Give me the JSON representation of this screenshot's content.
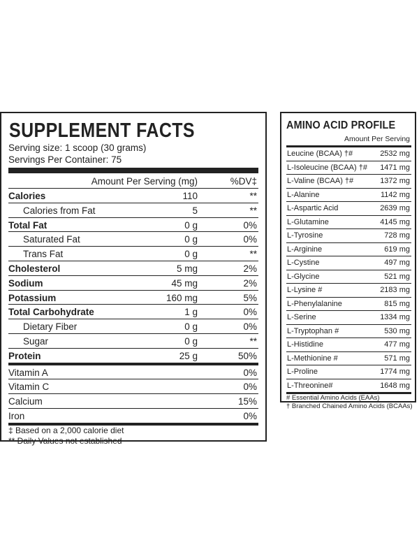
{
  "supplement_facts": {
    "title": "SUPPLEMENT FACTS",
    "serving_size": "Serving size: 1 scoop (30 grams)",
    "servings_per_container": "Servings Per Container: 75",
    "header": {
      "amount": "Amount Per Serving (mg)",
      "dv": "%DV‡"
    },
    "rows": [
      {
        "label": "Calories",
        "value": "110",
        "dv": "**"
      },
      {
        "label": "Calories from Fat",
        "value": "5",
        "dv": "**"
      },
      {
        "label": "Total Fat",
        "value": "0 g",
        "dv": "0%"
      },
      {
        "label": "Saturated Fat",
        "value": "0 g",
        "dv": "0%"
      },
      {
        "label": "Trans Fat",
        "value": "0 g",
        "dv": "**"
      },
      {
        "label": "Cholesterol",
        "value": "5 mg",
        "dv": "2%"
      },
      {
        "label": "Sodium",
        "value": "45 mg",
        "dv": "2%"
      },
      {
        "label": "Potassium",
        "value": "160 mg",
        "dv": "5%"
      },
      {
        "label": "Total Carbohydrate",
        "value": "1 g",
        "dv": "0%"
      },
      {
        "label": "Dietary Fiber",
        "value": "0 g",
        "dv": "0%"
      },
      {
        "label": "Sugar",
        "value": "0 g",
        "dv": "**"
      },
      {
        "label": "Protein",
        "value": "25 g",
        "dv": "50%"
      },
      {
        "label": "Vitamin A",
        "value": "",
        "dv": "0%"
      },
      {
        "label": "Vitamin C",
        "value": "",
        "dv": "0%"
      },
      {
        "label": "Calcium",
        "value": "",
        "dv": "15%"
      },
      {
        "label": "Iron",
        "value": "",
        "dv": "0%"
      }
    ],
    "footnotes": [
      "‡ Based on a 2,000 calorie diet",
      "** Daily Values not established"
    ]
  },
  "amino_acid_profile": {
    "title": "AMINO ACID PROFILE",
    "subheader": "Amount Per Serving",
    "rows": [
      {
        "name": "Leucine (BCAA) †#",
        "amount": "2532 mg"
      },
      {
        "name": "L-Isoleucine (BCAA) †#",
        "amount": "1471 mg"
      },
      {
        "name": "L-Valine (BCAA) †#",
        "amount": "1372 mg"
      },
      {
        "name": "L-Alanine",
        "amount": "1142 mg"
      },
      {
        "name": "L-Aspartic Acid",
        "amount": "2639 mg"
      },
      {
        "name": "L-Glutamine",
        "amount": "4145 mg"
      },
      {
        "name": "L-Tyrosine",
        "amount": "728 mg"
      },
      {
        "name": "L-Arginine",
        "amount": "619 mg"
      },
      {
        "name": "L-Cystine",
        "amount": "497 mg"
      },
      {
        "name": "L-Glycine",
        "amount": "521 mg"
      },
      {
        "name": "L-Lysine #",
        "amount": "2183 mg"
      },
      {
        "name": "L-Phenylalanine",
        "amount": "815 mg"
      },
      {
        "name": "L-Serine",
        "amount": "1334 mg"
      },
      {
        "name": "L-Tryptophan #",
        "amount": "530 mg"
      },
      {
        "name": "L-Histidine",
        "amount": "477 mg"
      },
      {
        "name": "L-Methionine #",
        "amount": "571 mg"
      },
      {
        "name": "L-Proline",
        "amount": "1774 mg"
      },
      {
        "name": "L-Threonine#",
        "amount": "1648 mg"
      }
    ],
    "footnotes": [
      "# Essential Amino Acids (EAAs)",
      "† Branched Chained Amino Acids (BCAAs)"
    ]
  }
}
